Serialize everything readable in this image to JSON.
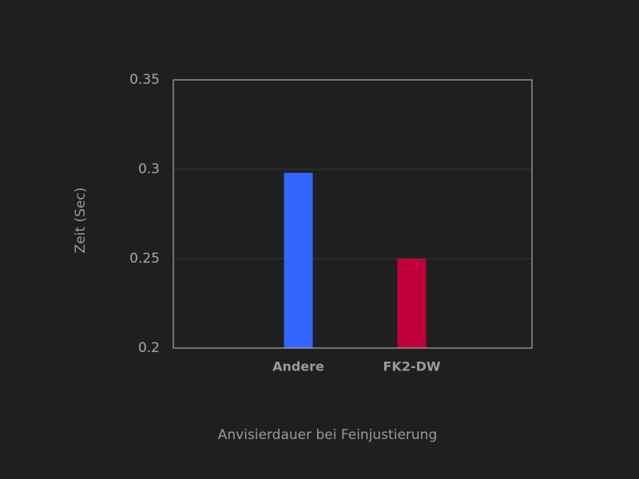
{
  "chart_data": {
    "type": "bar",
    "categories": [
      "Andere",
      "FK2-DW"
    ],
    "values": [
      0.298,
      0.25
    ],
    "colors": [
      "#3366ff",
      "#c0003c"
    ],
    "x_label": "Anvisierdauer bei Feinjustierung",
    "y_label": "Zeit (Sec)",
    "ylim": [
      0.2,
      0.35
    ],
    "yticks": [
      0.2,
      0.25,
      0.3,
      0.35
    ],
    "grid": true
  }
}
